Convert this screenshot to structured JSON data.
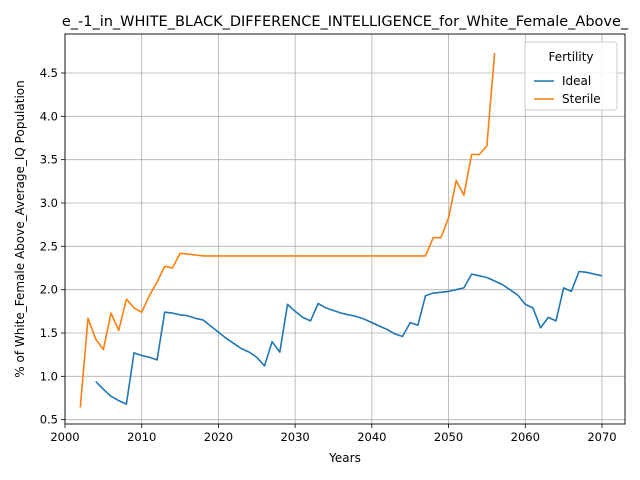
{
  "chart_data": {
    "type": "line",
    "title": "e_-1_in_WHITE_BLACK_DIFFERENCE_INTELLIGENCE_for_White_Female_Above_",
    "xlabel": "Years",
    "ylabel": "% of White_Female Above_Average_IQ Population",
    "xlim": [
      2000,
      2073
    ],
    "ylim": [
      0.45,
      4.95
    ],
    "xticks": [
      "2000",
      "2010",
      "2020",
      "2030",
      "2040",
      "2050",
      "2060",
      "2070"
    ],
    "yticks": [
      "0.5",
      "1.0",
      "1.5",
      "2.0",
      "2.5",
      "3.0",
      "3.5",
      "4.0",
      "4.5"
    ],
    "grid": true,
    "legend": {
      "title": "Fertility",
      "position": "top-right"
    },
    "series": [
      {
        "name": "Ideal",
        "color": "#1f77b4",
        "x": [
          2004,
          2005,
          2006,
          2007,
          2008,
          2009,
          2010,
          2011,
          2012,
          2013,
          2014,
          2015,
          2016,
          2017,
          2018,
          2019,
          2020,
          2021,
          2022,
          2023,
          2024,
          2025,
          2026,
          2027,
          2028,
          2029,
          2030,
          2031,
          2032,
          2033,
          2034,
          2035,
          2036,
          2037,
          2038,
          2039,
          2040,
          2041,
          2042,
          2043,
          2044,
          2045,
          2046,
          2047,
          2048,
          2049,
          2050,
          2051,
          2052,
          2053,
          2054,
          2055,
          2056,
          2057,
          2058,
          2059,
          2060,
          2061,
          2062,
          2063,
          2064,
          2065,
          2066,
          2067,
          2068,
          2069,
          2070
        ],
        "values": [
          0.94,
          0.85,
          0.77,
          0.72,
          0.68,
          1.27,
          1.24,
          1.22,
          1.19,
          1.74,
          1.73,
          1.71,
          1.7,
          1.67,
          1.65,
          1.58,
          1.51,
          1.44,
          1.38,
          1.32,
          1.28,
          1.22,
          1.12,
          1.4,
          1.28,
          1.83,
          1.75,
          1.68,
          1.64,
          1.84,
          1.79,
          1.76,
          1.73,
          1.71,
          1.69,
          1.66,
          1.62,
          1.58,
          1.54,
          1.49,
          1.46,
          1.62,
          1.59,
          1.93,
          1.96,
          1.97,
          1.98,
          2.0,
          2.02,
          2.18,
          2.16,
          2.14,
          2.1,
          2.06,
          2.0,
          1.94,
          1.83,
          1.79,
          1.56,
          1.68,
          1.64,
          2.02,
          1.98,
          2.21,
          2.2,
          2.18,
          2.16
        ]
      },
      {
        "name": "Sterile",
        "color": "#ff7f0e",
        "x": [
          2002,
          2003,
          2004,
          2005,
          2006,
          2007,
          2008,
          2009,
          2010,
          2011,
          2012,
          2013,
          2014,
          2015,
          2016,
          2017,
          2018,
          2019,
          2020,
          2021,
          2022,
          2023,
          2024,
          2025,
          2026,
          2027,
          2028,
          2029,
          2030,
          2031,
          2032,
          2033,
          2034,
          2035,
          2036,
          2037,
          2038,
          2039,
          2040,
          2041,
          2042,
          2043,
          2044,
          2045,
          2046,
          2047,
          2048,
          2049,
          2050,
          2051,
          2052,
          2053,
          2054,
          2055,
          2056
        ],
        "values": [
          0.64,
          1.67,
          1.43,
          1.31,
          1.73,
          1.53,
          1.89,
          1.79,
          1.74,
          1.93,
          2.09,
          2.27,
          2.25,
          2.42,
          2.41,
          2.4,
          2.39,
          2.39,
          2.39,
          2.39,
          2.39,
          2.39,
          2.39,
          2.39,
          2.39,
          2.39,
          2.39,
          2.39,
          2.39,
          2.39,
          2.39,
          2.39,
          2.39,
          2.39,
          2.39,
          2.39,
          2.39,
          2.39,
          2.39,
          2.39,
          2.39,
          2.39,
          2.39,
          2.39,
          2.39,
          2.39,
          2.6,
          2.6,
          2.83,
          3.26,
          3.09,
          3.56,
          3.56,
          3.66,
          4.73
        ]
      }
    ]
  }
}
